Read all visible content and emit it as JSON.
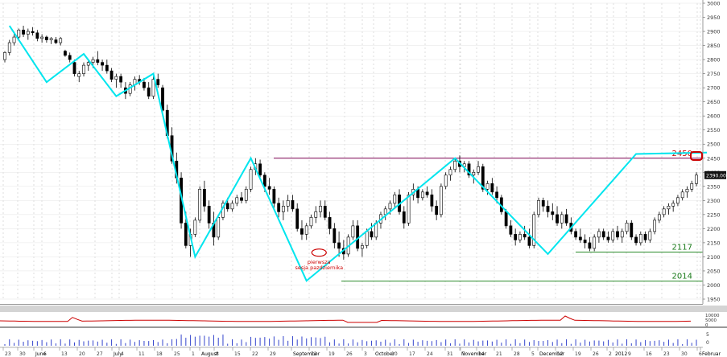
{
  "chart_data": {
    "type": "candlestick",
    "ylim": [
      1950,
      3000
    ],
    "yticks": [
      1950,
      2000,
      2050,
      2100,
      2150,
      2200,
      2250,
      2300,
      2350,
      2400,
      2450,
      2500,
      2550,
      2600,
      2650,
      2700,
      2750,
      2800,
      2850,
      2900,
      2950,
      3000
    ],
    "xaxis_labels": [
      {
        "label": "23",
        "x": 4
      },
      {
        "label": "30",
        "x": 22
      },
      {
        "label": "June",
        "x": 42
      },
      {
        "label": "6",
        "x": 52
      },
      {
        "label": "13",
        "x": 74
      },
      {
        "label": "20",
        "x": 96
      },
      {
        "label": "27",
        "x": 118
      },
      {
        "label": "July",
        "x": 139
      },
      {
        "label": "4",
        "x": 148
      },
      {
        "label": "11",
        "x": 170
      },
      {
        "label": "18",
        "x": 192
      },
      {
        "label": "25",
        "x": 214
      },
      {
        "label": "August",
        "x": 248
      },
      {
        "label": "1",
        "x": 236
      },
      {
        "label": "8",
        "x": 266
      },
      {
        "label": "15",
        "x": 289
      },
      {
        "label": "22",
        "x": 311
      },
      {
        "label": "29",
        "x": 333
      },
      {
        "label": "September",
        "x": 362
      },
      {
        "label": "12",
        "x": 384
      },
      {
        "label": "19",
        "x": 406
      },
      {
        "label": "26",
        "x": 428
      },
      {
        "label": "October",
        "x": 464
      },
      {
        "label": "3",
        "x": 450
      },
      {
        "label": "10",
        "x": 484
      },
      {
        "label": "17",
        "x": 506
      },
      {
        "label": "24",
        "x": 528
      },
      {
        "label": "31",
        "x": 553
      },
      {
        "label": "November",
        "x": 571
      },
      {
        "label": "7",
        "x": 572
      },
      {
        "label": "14",
        "x": 592
      },
      {
        "label": "21",
        "x": 614
      },
      {
        "label": "28",
        "x": 636
      },
      {
        "label": "December",
        "x": 668
      },
      {
        "label": "5",
        "x": 658
      },
      {
        "label": "12",
        "x": 690
      },
      {
        "label": "19",
        "x": 712
      },
      {
        "label": "26",
        "x": 734
      },
      {
        "label": "2012",
        "x": 762
      },
      {
        "label": "2",
        "x": 754
      },
      {
        "label": "9",
        "x": 778
      },
      {
        "label": "16",
        "x": 800
      },
      {
        "label": "23",
        "x": 822
      },
      {
        "label": "30",
        "x": 844
      },
      {
        "label": "Februar",
        "x": 870
      },
      {
        "label": "6",
        "x": 866
      }
    ],
    "candles": [
      [
        2800,
        2830,
        2790,
        2825
      ],
      [
        2825,
        2870,
        2815,
        2860
      ],
      [
        2860,
        2890,
        2850,
        2880
      ],
      [
        2880,
        2910,
        2870,
        2905
      ],
      [
        2905,
        2920,
        2880,
        2890
      ],
      [
        2890,
        2910,
        2870,
        2900
      ],
      [
        2900,
        2915,
        2885,
        2895
      ],
      [
        2895,
        2905,
        2865,
        2875
      ],
      [
        2875,
        2890,
        2860,
        2880
      ],
      [
        2880,
        2885,
        2860,
        2870
      ],
      [
        2870,
        2880,
        2855,
        2875
      ],
      [
        2870,
        2880,
        2855,
        2860
      ],
      [
        2860,
        2880,
        2850,
        2875
      ],
      [
        2830,
        2835,
        2810,
        2815
      ],
      [
        2815,
        2825,
        2790,
        2800
      ],
      [
        2790,
        2800,
        2740,
        2750
      ],
      [
        2740,
        2760,
        2720,
        2750
      ],
      [
        2750,
        2790,
        2740,
        2780
      ],
      [
        2780,
        2800,
        2760,
        2790
      ],
      [
        2790,
        2810,
        2770,
        2800
      ],
      [
        2800,
        2830,
        2780,
        2790
      ],
      [
        2790,
        2800,
        2760,
        2780
      ],
      [
        2780,
        2800,
        2750,
        2760
      ],
      [
        2760,
        2770,
        2720,
        2730
      ],
      [
        2730,
        2750,
        2700,
        2740
      ],
      [
        2740,
        2750,
        2700,
        2720
      ],
      [
        2700,
        2720,
        2660,
        2680
      ],
      [
        2680,
        2720,
        2670,
        2710
      ],
      [
        2710,
        2740,
        2690,
        2730
      ],
      [
        2730,
        2745,
        2710,
        2720
      ],
      [
        2720,
        2735,
        2690,
        2700
      ],
      [
        2700,
        2720,
        2660,
        2670
      ],
      [
        2670,
        2740,
        2660,
        2730
      ],
      [
        2730,
        2750,
        2700,
        2710
      ],
      [
        2700,
        2710,
        2600,
        2620
      ],
      [
        2620,
        2640,
        2520,
        2530
      ],
      [
        2530,
        2560,
        2430,
        2440
      ],
      [
        2440,
        2470,
        2360,
        2380
      ],
      [
        2380,
        2400,
        2200,
        2220
      ],
      [
        2220,
        2260,
        2130,
        2140
      ],
      [
        2140,
        2200,
        2100,
        2180
      ],
      [
        2180,
        2240,
        2170,
        2230
      ],
      [
        2230,
        2350,
        2220,
        2340
      ],
      [
        2340,
        2370,
        2260,
        2280
      ],
      [
        2280,
        2300,
        2200,
        2220
      ],
      [
        2220,
        2260,
        2140,
        2170
      ],
      [
        2170,
        2250,
        2160,
        2240
      ],
      [
        2240,
        2300,
        2230,
        2290
      ],
      [
        2290,
        2310,
        2260,
        2270
      ],
      [
        2270,
        2300,
        2260,
        2290
      ],
      [
        2290,
        2320,
        2280,
        2310
      ],
      [
        2310,
        2330,
        2290,
        2300
      ],
      [
        2300,
        2350,
        2290,
        2340
      ],
      [
        2340,
        2420,
        2330,
        2410
      ],
      [
        2410,
        2450,
        2390,
        2430
      ],
      [
        2430,
        2445,
        2380,
        2390
      ],
      [
        2390,
        2400,
        2330,
        2350
      ],
      [
        2350,
        2380,
        2320,
        2340
      ],
      [
        2340,
        2350,
        2270,
        2290
      ],
      [
        2290,
        2310,
        2240,
        2260
      ],
      [
        2260,
        2300,
        2230,
        2280
      ],
      [
        2280,
        2320,
        2260,
        2300
      ],
      [
        2300,
        2320,
        2260,
        2270
      ],
      [
        2270,
        2290,
        2190,
        2200
      ],
      [
        2200,
        2230,
        2160,
        2180
      ],
      [
        2180,
        2220,
        2160,
        2210
      ],
      [
        2210,
        2250,
        2200,
        2240
      ],
      [
        2240,
        2280,
        2220,
        2260
      ],
      [
        2260,
        2300,
        2240,
        2280
      ],
      [
        2280,
        2300,
        2230,
        2240
      ],
      [
        2240,
        2260,
        2180,
        2200
      ],
      [
        2200,
        2220,
        2130,
        2150
      ],
      [
        2150,
        2190,
        2100,
        2130
      ],
      [
        2130,
        2160,
        2090,
        2110
      ],
      [
        2110,
        2180,
        2100,
        2170
      ],
      [
        2170,
        2230,
        2160,
        2210
      ],
      [
        2210,
        2230,
        2120,
        2130
      ],
      [
        2130,
        2150,
        2100,
        2140
      ],
      [
        2140,
        2200,
        2130,
        2190
      ],
      [
        2190,
        2220,
        2160,
        2170
      ],
      [
        2170,
        2230,
        2160,
        2220
      ],
      [
        2220,
        2260,
        2200,
        2250
      ],
      [
        2250,
        2280,
        2230,
        2270
      ],
      [
        2270,
        2300,
        2250,
        2290
      ],
      [
        2290,
        2330,
        2270,
        2320
      ],
      [
        2320,
        2340,
        2250,
        2260
      ],
      [
        2260,
        2280,
        2200,
        2220
      ],
      [
        2220,
        2330,
        2210,
        2320
      ],
      [
        2320,
        2360,
        2300,
        2340
      ],
      [
        2340,
        2350,
        2290,
        2310
      ],
      [
        2310,
        2340,
        2300,
        2330
      ],
      [
        2330,
        2350,
        2310,
        2320
      ],
      [
        2320,
        2340,
        2260,
        2280
      ],
      [
        2280,
        2300,
        2230,
        2250
      ],
      [
        2250,
        2360,
        2240,
        2350
      ],
      [
        2350,
        2400,
        2340,
        2390
      ],
      [
        2390,
        2420,
        2370,
        2410
      ],
      [
        2410,
        2450,
        2400,
        2440
      ],
      [
        2440,
        2460,
        2400,
        2420
      ],
      [
        2420,
        2440,
        2400,
        2430
      ],
      [
        2430,
        2440,
        2380,
        2390
      ],
      [
        2390,
        2410,
        2360,
        2400
      ],
      [
        2400,
        2440,
        2390,
        2420
      ],
      [
        2420,
        2430,
        2330,
        2340
      ],
      [
        2340,
        2370,
        2320,
        2360
      ],
      [
        2360,
        2380,
        2320,
        2330
      ],
      [
        2330,
        2350,
        2290,
        2310
      ],
      [
        2310,
        2320,
        2250,
        2260
      ],
      [
        2260,
        2270,
        2200,
        2210
      ],
      [
        2210,
        2230,
        2170,
        2180
      ],
      [
        2180,
        2200,
        2140,
        2160
      ],
      [
        2160,
        2190,
        2150,
        2180
      ],
      [
        2180,
        2210,
        2160,
        2170
      ],
      [
        2170,
        2200,
        2130,
        2140
      ],
      [
        2140,
        2260,
        2130,
        2250
      ],
      [
        2250,
        2310,
        2240,
        2300
      ],
      [
        2300,
        2310,
        2260,
        2280
      ],
      [
        2280,
        2300,
        2240,
        2260
      ],
      [
        2260,
        2290,
        2230,
        2250
      ],
      [
        2250,
        2280,
        2210,
        2220
      ],
      [
        2220,
        2260,
        2200,
        2250
      ],
      [
        2250,
        2270,
        2210,
        2220
      ],
      [
        2220,
        2240,
        2180,
        2190
      ],
      [
        2190,
        2200,
        2160,
        2170
      ],
      [
        2170,
        2200,
        2150,
        2160
      ],
      [
        2160,
        2180,
        2130,
        2150
      ],
      [
        2150,
        2170,
        2120,
        2130
      ],
      [
        2130,
        2180,
        2120,
        2170
      ],
      [
        2170,
        2200,
        2150,
        2190
      ],
      [
        2190,
        2200,
        2160,
        2170
      ],
      [
        2170,
        2190,
        2150,
        2160
      ],
      [
        2160,
        2200,
        2150,
        2190
      ],
      [
        2190,
        2210,
        2160,
        2170
      ],
      [
        2170,
        2200,
        2150,
        2190
      ],
      [
        2190,
        2230,
        2180,
        2220
      ],
      [
        2220,
        2230,
        2160,
        2170
      ],
      [
        2170,
        2180,
        2140,
        2150
      ],
      [
        2150,
        2190,
        2140,
        2180
      ],
      [
        2180,
        2190,
        2150,
        2160
      ],
      [
        2160,
        2200,
        2150,
        2190
      ],
      [
        2190,
        2240,
        2180,
        2230
      ],
      [
        2230,
        2260,
        2220,
        2250
      ],
      [
        2250,
        2280,
        2240,
        2270
      ],
      [
        2270,
        2290,
        2250,
        2280
      ],
      [
        2280,
        2300,
        2260,
        2290
      ],
      [
        2290,
        2320,
        2280,
        2310
      ],
      [
        2310,
        2340,
        2300,
        2330
      ],
      [
        2330,
        2350,
        2310,
        2340
      ],
      [
        2340,
        2370,
        2330,
        2360
      ],
      [
        2360,
        2400,
        2350,
        2390
      ]
    ],
    "zigzag": [
      [
        1,
        2920
      ],
      [
        9,
        2720
      ],
      [
        17,
        2820
      ],
      [
        24,
        2670
      ],
      [
        32,
        2750
      ],
      [
        41,
        2100
      ],
      [
        53,
        2450
      ],
      [
        65,
        2015
      ],
      [
        97,
        2450
      ],
      [
        117,
        2110
      ],
      [
        136,
        2465
      ]
    ],
    "horizontal_lines": [
      {
        "y": 2450,
        "label": "2450",
        "color": "#7a0050",
        "label_color": "#cc0000"
      },
      {
        "y": 2117,
        "label": "2117",
        "color": "#2a8a2a",
        "label_color": "#1a7a1a"
      },
      {
        "y": 2014,
        "label": "2014",
        "color": "#2a8a2a",
        "label_color": "#1a7a1a"
      }
    ],
    "annotation": {
      "lines": [
        "pierwsza",
        "sesja pazdziernika"
      ],
      "color": "#cc0000"
    },
    "last_price_label": "2390.00",
    "indicator_axis": [
      "10000",
      "5000",
      "0"
    ],
    "volume_axis_ticks": [
      "5",
      "0"
    ],
    "colors": {
      "zigzag": "#00e5ee",
      "grid": "#c8c8c8",
      "up": "#ffffff",
      "down": "#000000",
      "indicator": "#cc0000",
      "volume": "#3344cc"
    }
  }
}
